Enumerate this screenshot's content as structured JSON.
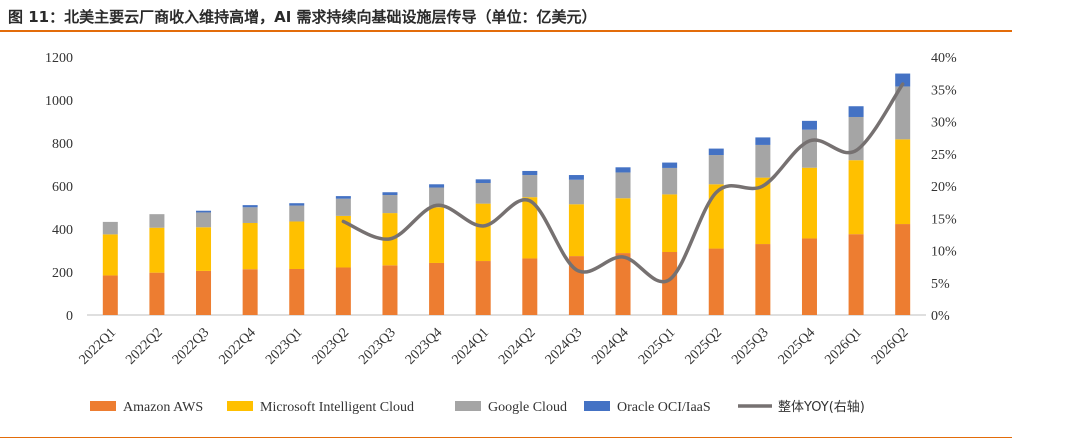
{
  "title": "图 11：北美主要云厂商收入维持高增，AI 需求持续向基础设施层传导（单位：亿美元）",
  "chart_data": {
    "type": "bar",
    "stacked": true,
    "categories": [
      "2022Q1",
      "2022Q2",
      "2022Q3",
      "2022Q4",
      "2023Q1",
      "2023Q2",
      "2023Q3",
      "2023Q4",
      "2024Q1",
      "2024Q2",
      "2024Q3",
      "2024Q4",
      "2025Q1",
      "2025Q2",
      "2025Q3",
      "2025Q4",
      "2026Q1",
      "2026Q2"
    ],
    "series": [
      {
        "name": "Amazon AWS",
        "color": "#ed7d31",
        "values": [
          184,
          197,
          205,
          213,
          214,
          221,
          231,
          242,
          251,
          263,
          274,
          288,
          293,
          309,
          330,
          356,
          376,
          423
        ]
      },
      {
        "name": "Microsoft Intelligent Cloud",
        "color": "#ffc000",
        "values": [
          191,
          209,
          203,
          215,
          221,
          240,
          243,
          259,
          267,
          285,
          241,
          255,
          268,
          299,
          309,
          329,
          344,
          394
        ]
      },
      {
        "name": "Google Cloud",
        "color": "#a5a5a5",
        "values": [
          58,
          63,
          69,
          73,
          74,
          80,
          84,
          92,
          96,
          103,
          114,
          120,
          123,
          136,
          152,
          177,
          201,
          246
        ]
      },
      {
        "name": "Oracle OCI/IaaS",
        "color": "#4472c4",
        "values": [
          0,
          0,
          8,
          10,
          11,
          12,
          13,
          15,
          17,
          19,
          22,
          24,
          25,
          30,
          35,
          41,
          50,
          60
        ]
      }
    ],
    "line": {
      "name": "整体YOY(右轴)",
      "color": "#767171",
      "x_start_index": 5,
      "values": [
        14.5,
        11.8,
        17.0,
        13.8,
        17.7,
        7.0,
        9.0,
        5.5,
        19.0,
        20.0,
        27.0,
        25.5,
        35.8
      ]
    },
    "y_left": {
      "min": 0,
      "max": 1200,
      "ticks": [
        "0",
        "200",
        "400",
        "600",
        "800",
        "1000",
        "1200"
      ]
    },
    "y_right": {
      "min": 0,
      "max": 40,
      "ticks": [
        "0%",
        "5%",
        "10%",
        "15%",
        "20%",
        "25%",
        "30%",
        "35%",
        "40%"
      ]
    },
    "legend_position": "bottom",
    "grid": false
  }
}
